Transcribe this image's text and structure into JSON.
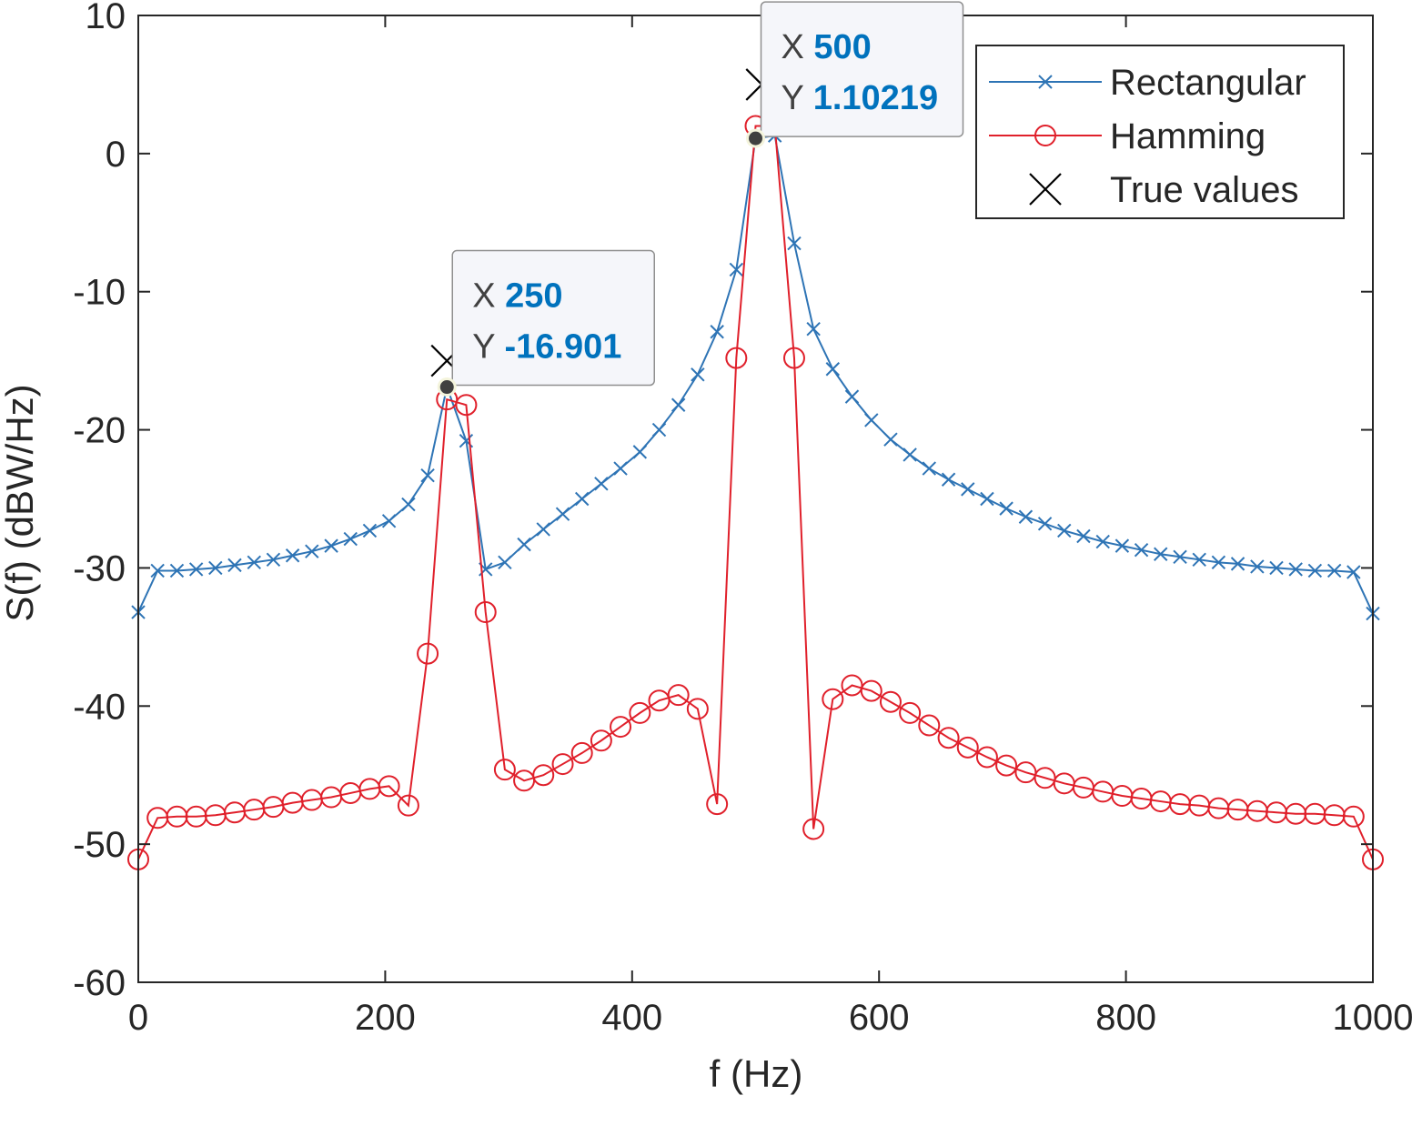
{
  "chart_data": {
    "type": "line",
    "title": "",
    "xlabel": "f (Hz)",
    "ylabel": "S(f)  (dBW/Hz)",
    "xlim": [
      0,
      1000
    ],
    "ylim": [
      -60,
      10
    ],
    "xticks": [
      0,
      200,
      400,
      600,
      800,
      1000
    ],
    "yticks": [
      10,
      0,
      -10,
      -20,
      -30,
      -40,
      -50,
      -60
    ],
    "xtick_labels": [
      "0",
      "200",
      "400",
      "600",
      "800",
      "1000"
    ],
    "ytick_labels": [
      "10",
      "0",
      "-10",
      "-20",
      "-30",
      "-40",
      "-50",
      "-60"
    ],
    "grid": false,
    "legend_position": "top-right",
    "series": [
      {
        "name": "Rectangular",
        "color": "#2e74b5",
        "marker": "x",
        "x": [
          0,
          15.6,
          31.3,
          46.9,
          62.5,
          78.1,
          93.8,
          109.4,
          125,
          140.6,
          156.3,
          171.9,
          187.5,
          203.1,
          218.8,
          234.4,
          250,
          265.6,
          281.3,
          296.9,
          312.5,
          328.1,
          343.8,
          359.4,
          375,
          390.6,
          406.3,
          421.9,
          437.5,
          453.1,
          468.8,
          484.4,
          500,
          515.6,
          531.3,
          546.9,
          562.5,
          578.1,
          593.8,
          609.4,
          625,
          640.6,
          656.3,
          671.9,
          687.5,
          703.1,
          718.8,
          734.4,
          750,
          765.6,
          781.3,
          796.9,
          812.5,
          828.1,
          843.8,
          859.4,
          875,
          890.6,
          906.3,
          921.9,
          937.5,
          953.1,
          968.8,
          984.4,
          1000
        ],
        "values": [
          -33.2,
          -30.2,
          -30.2,
          -30.1,
          -30.0,
          -29.8,
          -29.6,
          -29.4,
          -29.1,
          -28.8,
          -28.4,
          -27.9,
          -27.3,
          -26.6,
          -25.4,
          -23.3,
          -16.9,
          -20.8,
          -30.1,
          -29.6,
          -28.3,
          -27.2,
          -26.1,
          -25.0,
          -23.9,
          -22.8,
          -21.6,
          -20.0,
          -18.2,
          -16.0,
          -12.9,
          -8.4,
          1.1,
          1.3,
          -6.5,
          -12.7,
          -15.6,
          -17.6,
          -19.3,
          -20.7,
          -21.8,
          -22.8,
          -23.6,
          -24.3,
          -25.0,
          -25.7,
          -26.3,
          -26.8,
          -27.3,
          -27.7,
          -28.1,
          -28.4,
          -28.7,
          -29.0,
          -29.2,
          -29.4,
          -29.6,
          -29.7,
          -29.9,
          -30.0,
          -30.1,
          -30.2,
          -30.2,
          -30.3,
          -33.3
        ]
      },
      {
        "name": "Hamming",
        "color": "#e0202b",
        "marker": "o",
        "x": [
          0,
          15.6,
          31.3,
          46.9,
          62.5,
          78.1,
          93.8,
          109.4,
          125,
          140.6,
          156.3,
          171.9,
          187.5,
          203.1,
          218.8,
          234.4,
          250,
          265.6,
          281.3,
          296.9,
          312.5,
          328.1,
          343.8,
          359.4,
          375,
          390.6,
          406.3,
          421.9,
          437.5,
          453.1,
          468.8,
          484.4,
          500,
          515.6,
          531.3,
          546.9,
          562.5,
          578.1,
          593.8,
          609.4,
          625,
          640.6,
          656.3,
          671.9,
          687.5,
          703.1,
          718.8,
          734.4,
          750,
          765.6,
          781.3,
          796.9,
          812.5,
          828.1,
          843.8,
          859.4,
          875,
          890.6,
          906.3,
          921.9,
          937.5,
          953.1,
          968.8,
          984.4,
          1000
        ],
        "values": [
          -51.1,
          -48.1,
          -48.0,
          -48.0,
          -47.9,
          -47.7,
          -47.5,
          -47.3,
          -47.0,
          -46.8,
          -46.6,
          -46.3,
          -46.0,
          -45.8,
          -47.2,
          -36.2,
          -17.8,
          -18.2,
          -33.2,
          -44.6,
          -45.4,
          -45.0,
          -44.2,
          -43.4,
          -42.5,
          -41.5,
          -40.5,
          -39.6,
          -39.2,
          -40.2,
          -47.1,
          -14.8,
          2.0,
          2.0,
          -14.8,
          -48.9,
          -39.5,
          -38.5,
          -38.9,
          -39.7,
          -40.5,
          -41.4,
          -42.3,
          -43.0,
          -43.7,
          -44.3,
          -44.8,
          -45.2,
          -45.6,
          -45.9,
          -46.2,
          -46.5,
          -46.7,
          -46.9,
          -47.1,
          -47.2,
          -47.4,
          -47.5,
          -47.6,
          -47.7,
          -47.8,
          -47.8,
          -47.9,
          -48.0,
          -51.1
        ]
      },
      {
        "name": "True values",
        "color": "#000000",
        "marker": "x",
        "x": [
          250,
          505
        ],
        "values": [
          -15,
          5
        ]
      }
    ],
    "annotations": [
      {
        "key_x": "X",
        "value_x": "250",
        "key_y": "Y",
        "value_y": "-16.901",
        "x": 250,
        "y": -16.901
      },
      {
        "key_x": "X",
        "value_x": "500",
        "key_y": "Y",
        "value_y": "1.10219",
        "x": 500,
        "y": 1.10219
      }
    ]
  }
}
